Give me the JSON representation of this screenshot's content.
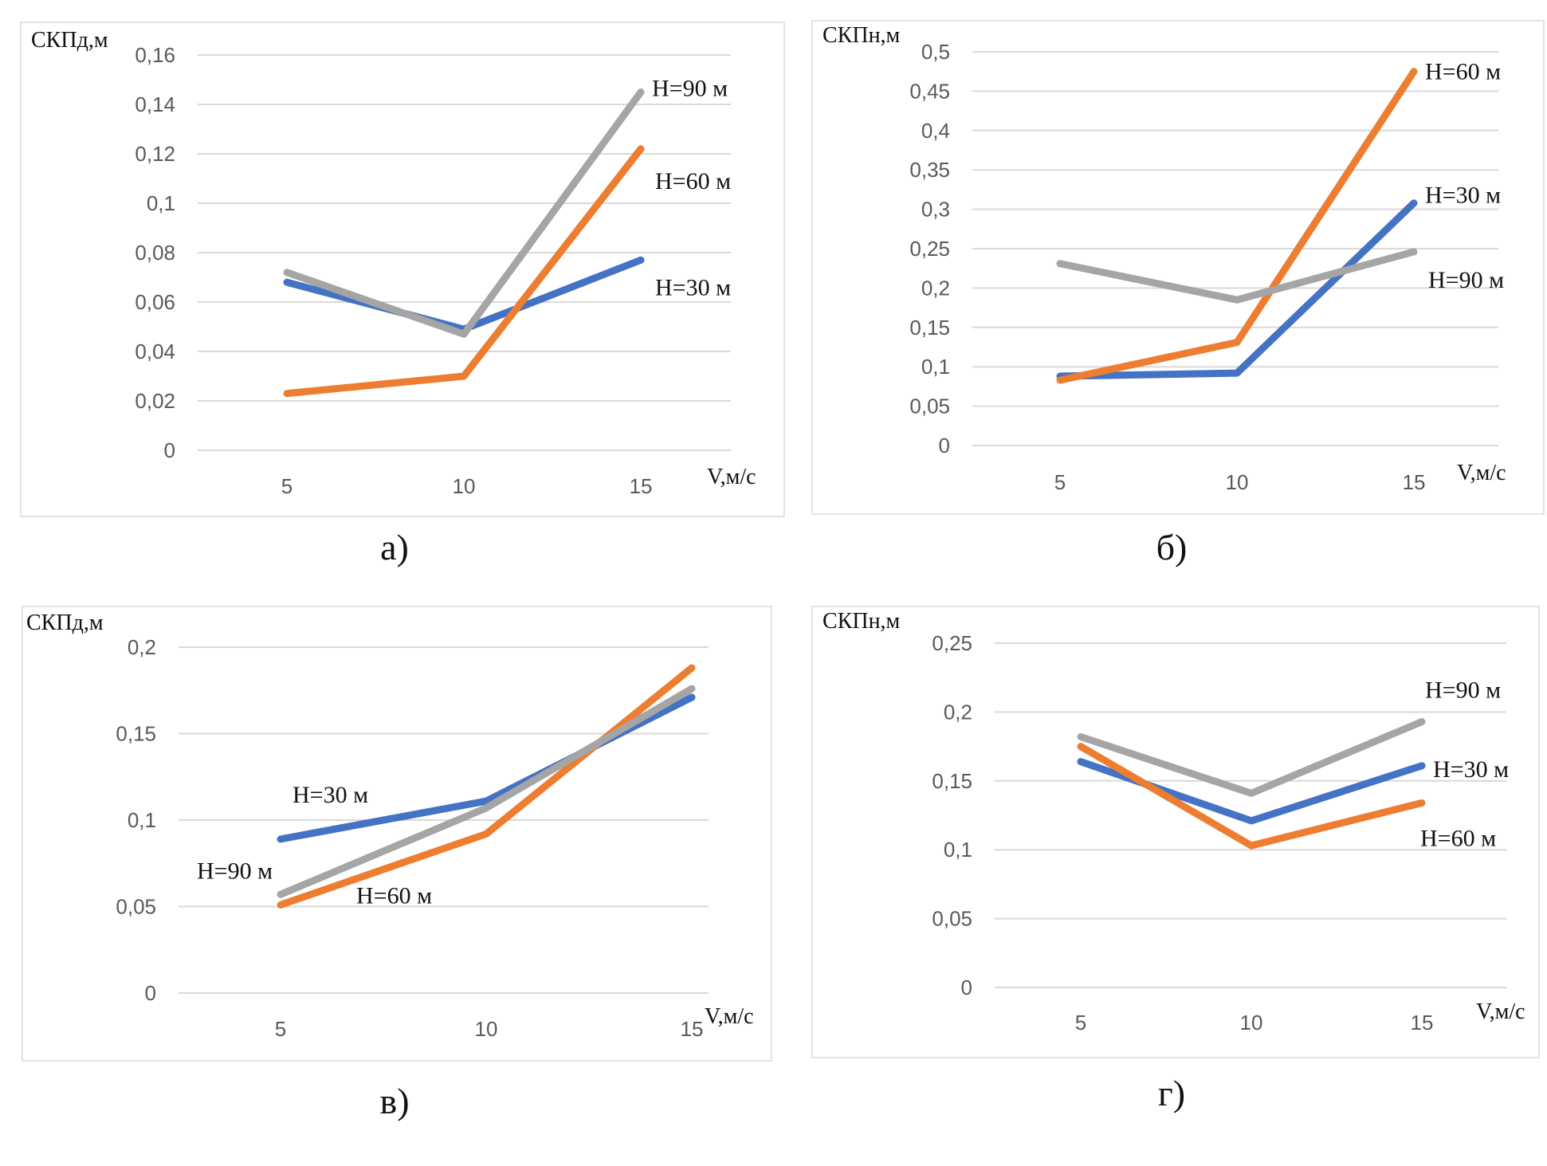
{
  "colors": {
    "H30": "#4472C4",
    "H60": "#ED7D31",
    "H90": "#A5A5A5",
    "grid": "#d9d9d9"
  },
  "chart_data": [
    {
      "id": "a",
      "type": "line",
      "caption": "а)",
      "ylabel": "СКПд,м",
      "xlabel": "V,м/с",
      "categories": [
        "5",
        "10",
        "15"
      ],
      "ylim": [
        0,
        0.16
      ],
      "yticks": [
        0,
        0.02,
        0.04,
        0.06,
        0.08,
        0.1,
        0.12,
        0.14,
        0.16
      ],
      "ytick_labels": [
        "0",
        "0,02",
        "0,04",
        "0,06",
        "0,08",
        "0,1",
        "0,12",
        "0,14",
        "0,16"
      ],
      "grid": true,
      "series": [
        {
          "name": "H=30 м",
          "key": "H30",
          "values": [
            0.068,
            0.049,
            0.077
          ],
          "label_pos": "right-of-end"
        },
        {
          "name": "H=60 м",
          "key": "H60",
          "values": [
            0.023,
            0.03,
            0.122
          ],
          "label_pos": "right-of-end"
        },
        {
          "name": "H=90 м",
          "key": "H90",
          "values": [
            0.072,
            0.047,
            0.145
          ],
          "label_pos": "right-of-end"
        }
      ]
    },
    {
      "id": "b",
      "type": "line",
      "caption": "б)",
      "ylabel": "СКПн,м",
      "xlabel": "V,м/с",
      "categories": [
        "5",
        "10",
        "15"
      ],
      "ylim": [
        0,
        0.5
      ],
      "yticks": [
        0,
        0.05,
        0.1,
        0.15,
        0.2,
        0.25,
        0.3,
        0.35,
        0.4,
        0.45,
        0.5
      ],
      "ytick_labels": [
        "0",
        "0,05",
        "0,1",
        "0,15",
        "0,2",
        "0,25",
        "0,3",
        "0,35",
        "0,4",
        "0,45",
        "0,5"
      ],
      "grid": true,
      "series": [
        {
          "name": "H=30 м",
          "key": "H30",
          "values": [
            0.088,
            0.092,
            0.308
          ],
          "label_pos": "right-of-end"
        },
        {
          "name": "H=60 м",
          "key": "H60",
          "values": [
            0.083,
            0.131,
            0.475
          ],
          "label_pos": "right-of-end"
        },
        {
          "name": "H=90 м",
          "key": "H90",
          "values": [
            0.231,
            0.185,
            0.246
          ],
          "label_pos": "right-of-end"
        }
      ]
    },
    {
      "id": "c",
      "type": "line",
      "caption": "в)",
      "ylabel": "СКПд,м",
      "xlabel": "V,м/с",
      "categories": [
        "5",
        "10",
        "15"
      ],
      "ylim": [
        0,
        0.2
      ],
      "yticks": [
        0,
        0.05,
        0.1,
        0.15,
        0.2
      ],
      "ytick_labels": [
        "0",
        "0,05",
        "0,1",
        "0,15",
        "0,2"
      ],
      "grid": true,
      "series": [
        {
          "name": "H=30 м",
          "key": "H30",
          "values": [
            0.089,
            0.111,
            0.171
          ],
          "label_pos": "above-start"
        },
        {
          "name": "H=60 м",
          "key": "H60",
          "values": [
            0.051,
            0.092,
            0.188
          ],
          "label_pos": "below-start"
        },
        {
          "name": "H=90 м",
          "key": "H90",
          "values": [
            0.057,
            0.107,
            0.176
          ],
          "label_pos": "left-of-start"
        }
      ]
    },
    {
      "id": "d",
      "type": "line",
      "caption": "г)",
      "ylabel": "СКПн,м",
      "xlabel": "V,м/с",
      "categories": [
        "5",
        "10",
        "15"
      ],
      "ylim": [
        0,
        0.25
      ],
      "yticks": [
        0,
        0.05,
        0.1,
        0.15,
        0.2,
        0.25
      ],
      "ytick_labels": [
        "0",
        "0,05",
        "0,1",
        "0,15",
        "0,2",
        "0,25"
      ],
      "grid": true,
      "series": [
        {
          "name": "H=30 м",
          "key": "H30",
          "values": [
            0.164,
            0.121,
            0.161
          ],
          "label_pos": "right-of-end"
        },
        {
          "name": "H=60 м",
          "key": "H60",
          "values": [
            0.175,
            0.103,
            0.134
          ],
          "label_pos": "right-of-end"
        },
        {
          "name": "H=90 м",
          "key": "H90",
          "values": [
            0.182,
            0.141,
            0.193
          ],
          "label_pos": "right-of-end"
        }
      ]
    }
  ]
}
